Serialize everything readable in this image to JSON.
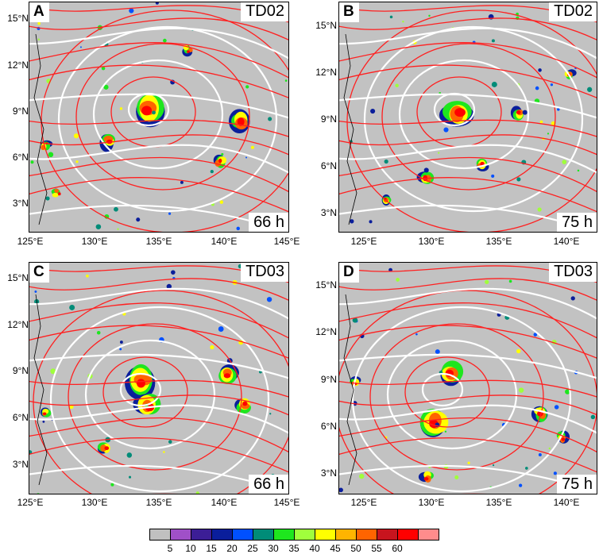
{
  "panels": [
    {
      "id": "A",
      "title": "TD02",
      "time": "66 h",
      "lats": [
        "15°N",
        "12°N",
        "9°N",
        "6°N",
        "3°N"
      ],
      "lons": [
        "125°E",
        "130°E",
        "135°E",
        "140°E",
        "145°E"
      ]
    },
    {
      "id": "B",
      "title": "TD02",
      "time": "75 h",
      "lats": [
        "15°N",
        "12°N",
        "9°N",
        "6°N",
        "3°N"
      ],
      "lons": [
        "125°E",
        "130°E",
        "135°E",
        "140°E"
      ]
    },
    {
      "id": "C",
      "title": "TD03",
      "time": "66 h",
      "lats": [
        "15°N",
        "12°N",
        "9°N",
        "6°N",
        "3°N"
      ],
      "lons": [
        "125°E",
        "130°E",
        "135°E",
        "140°E",
        "145°E"
      ]
    },
    {
      "id": "D",
      "title": "TD03",
      "time": "75 h",
      "lats": [
        "15°N",
        "12°N",
        "9°N",
        "6°N",
        "3°N"
      ],
      "lons": [
        "125°E",
        "130°E",
        "135°E",
        "140°E"
      ]
    }
  ],
  "colorbar": {
    "labels": [
      "5",
      "10",
      "15",
      "20",
      "25",
      "30",
      "35",
      "40",
      "45",
      "50",
      "55",
      "60"
    ],
    "colors": [
      "#c0c0c0",
      "#a050c8",
      "#3c1e96",
      "#0a1e9b",
      "#0050ff",
      "#008c78",
      "#1ee61e",
      "#a0ff3c",
      "#ffff00",
      "#ffb400",
      "#ff6400",
      "#c8141e",
      "#ff0000",
      "#ff8c8c"
    ]
  },
  "colors": {
    "map_bg": "#c2c2c2",
    "streamline_red": "#ff2020",
    "streamline_white": "#ffffff"
  }
}
